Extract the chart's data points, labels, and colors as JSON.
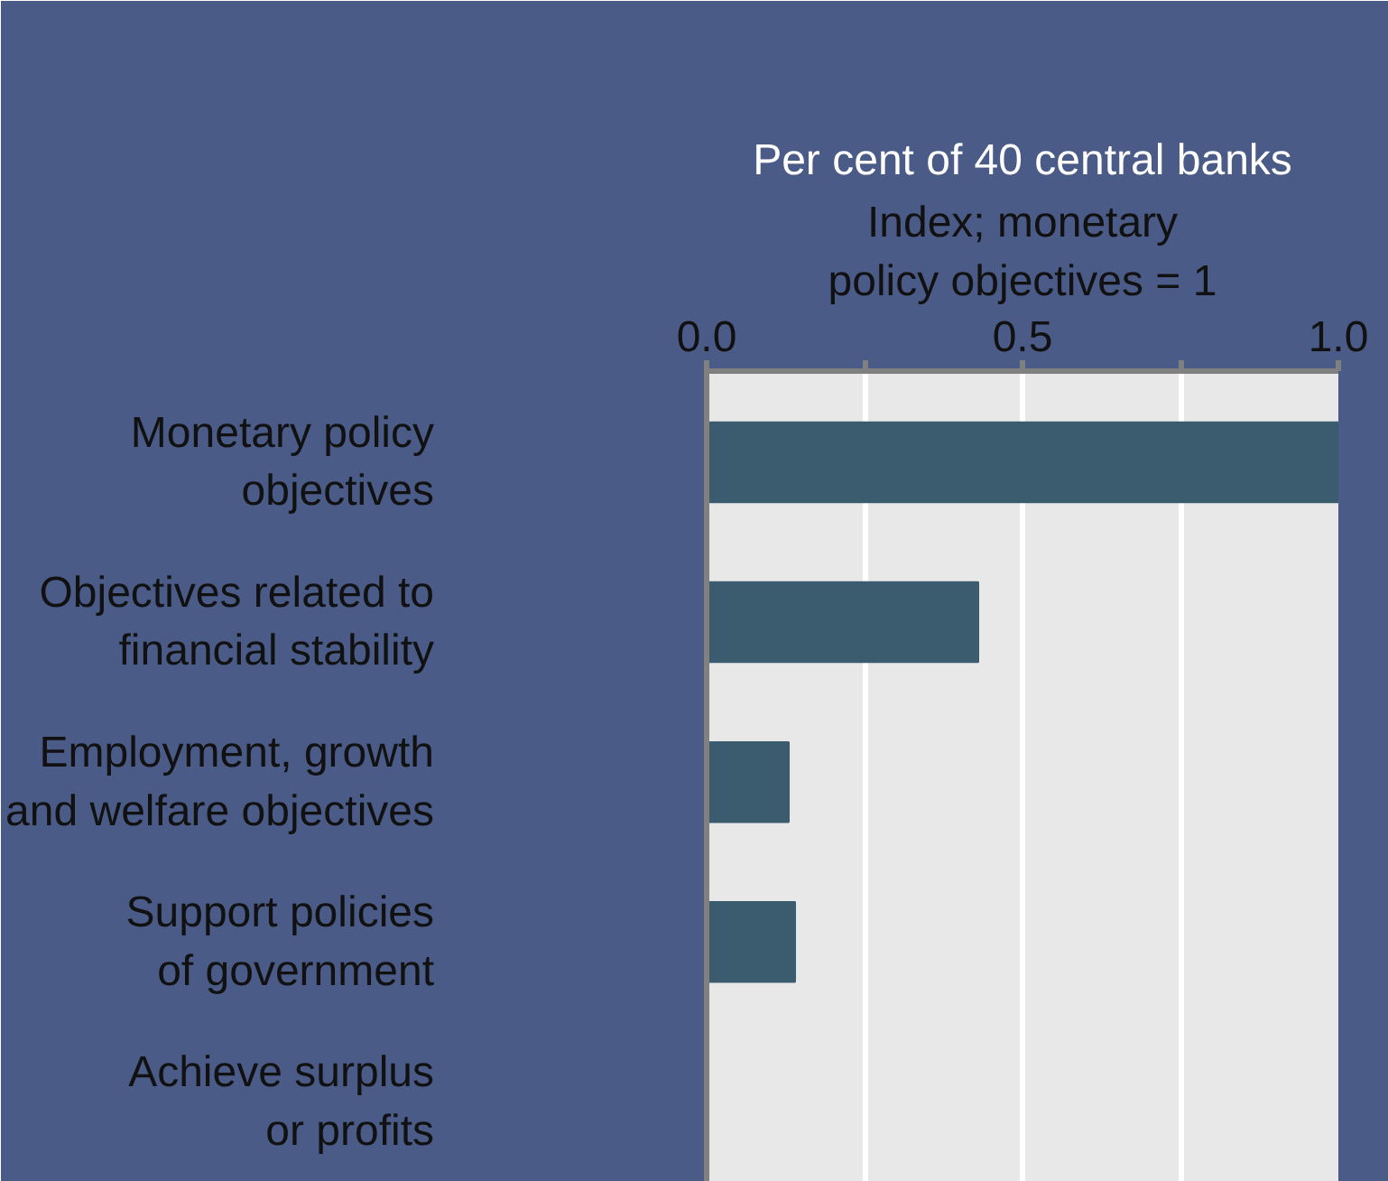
{
  "chart_data": {
    "type": "bar",
    "orientation": "horizontal",
    "title": "Per cent of 40 central banks",
    "xlabel": "Index; monetary policy objectives = 1",
    "categories": [
      "Monetary policy objectives",
      "Objectives related to financial stability",
      "Employment, growth and welfare objectives",
      "Support policies of government",
      "Achieve surplus or profits"
    ],
    "values": [
      1.0,
      0.43,
      0.13,
      0.14,
      0
    ],
    "color": "#3b5b6e",
    "xlim": [
      0,
      1.0
    ],
    "xticks": [
      {
        "value": 0,
        "label": "0.0"
      },
      {
        "value": 0.25,
        "label": null
      },
      {
        "value": 0.5,
        "label": "0.5"
      },
      {
        "value": 0.75,
        "label": null
      },
      {
        "value": 1.0,
        "label": "1.0"
      }
    ],
    "grid": "x"
  }
}
